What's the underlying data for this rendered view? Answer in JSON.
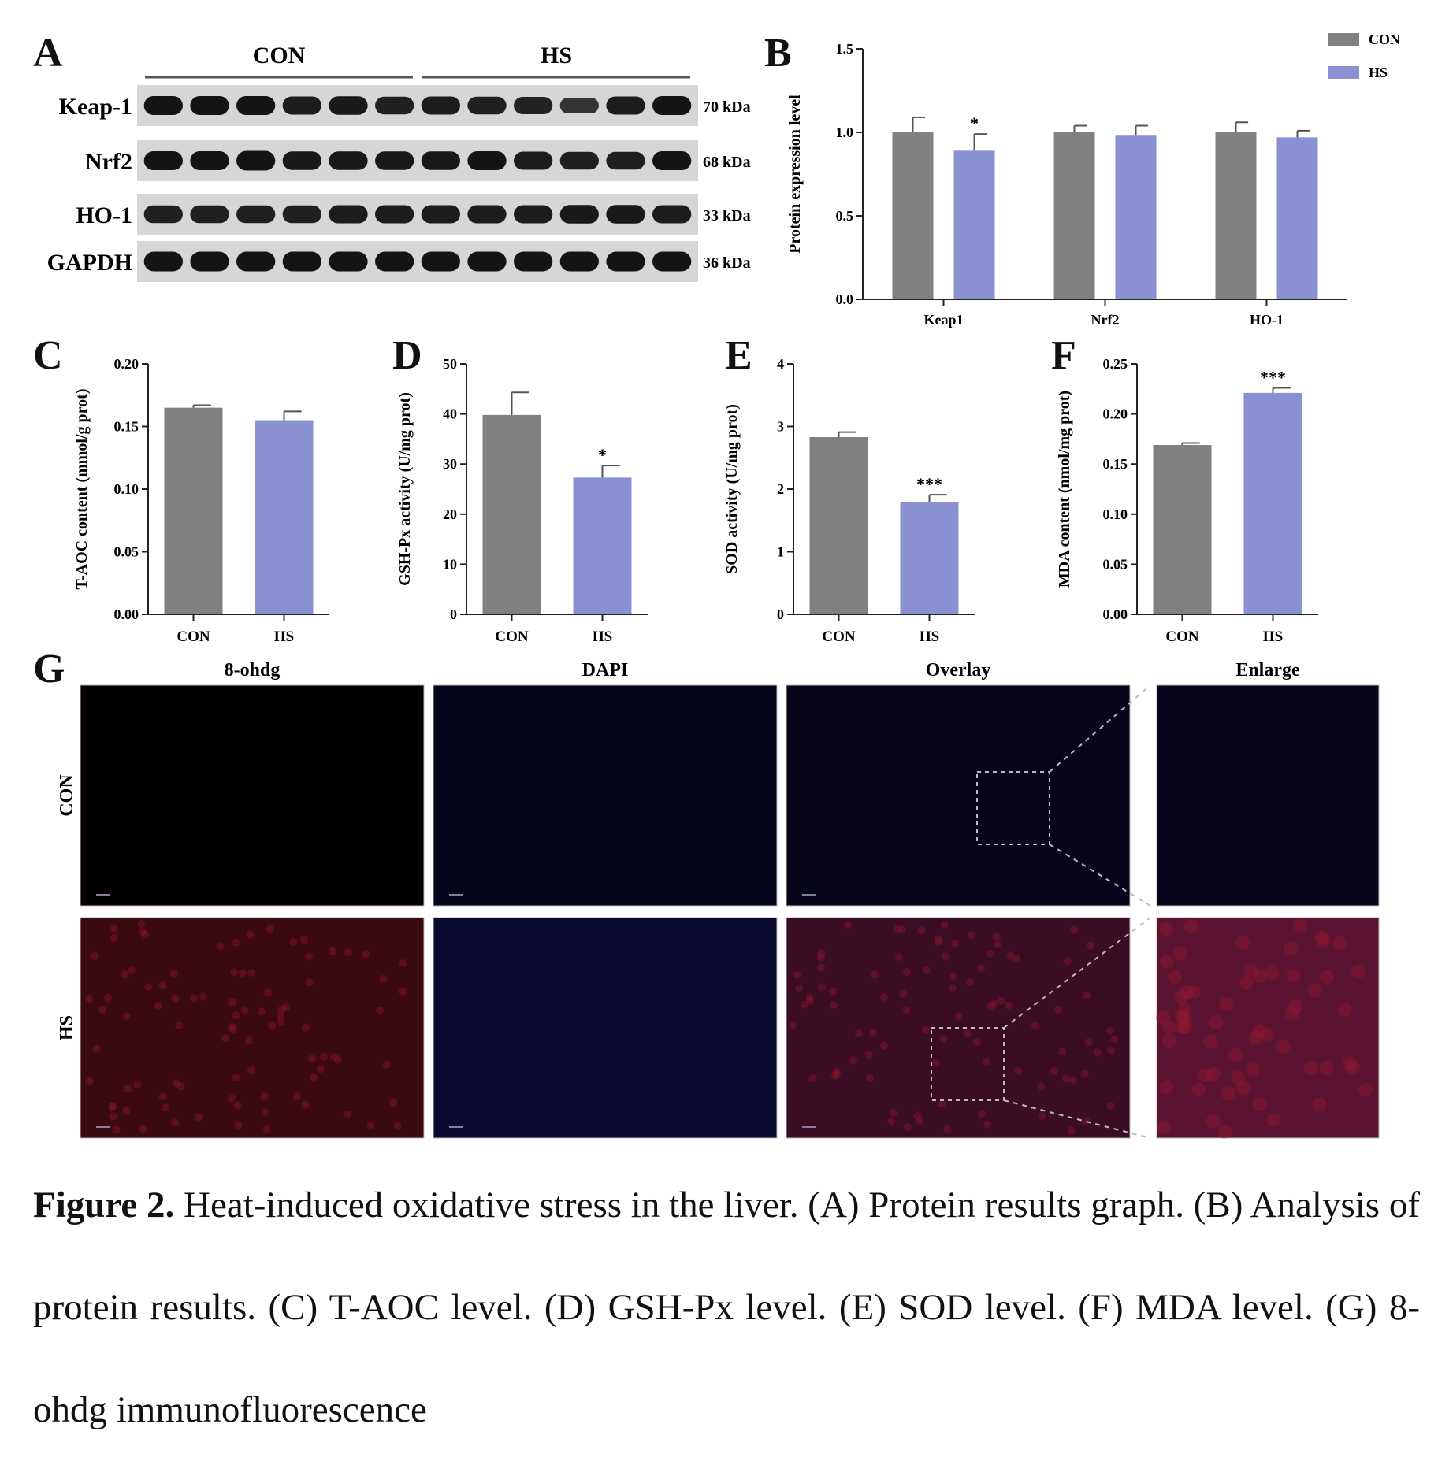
{
  "figure": {
    "panel_labels": [
      "A",
      "B",
      "C",
      "D",
      "E",
      "F",
      "G"
    ],
    "caption_label": "Figure 2.",
    "caption_text": " Heat-induced oxidative stress in the liver. (A) Protein results graph. (B) Analysis of protein results. (C) T-AOC level. (D) GSH-Px level. (E) SOD level. (F) MDA level. (G) 8-ohdg immunofluorescence"
  },
  "western_blot": {
    "groups": [
      "CON",
      "HS"
    ],
    "lanes_per_group": 6,
    "proteins": [
      {
        "name": "Keap-1",
        "size": "70 kDa"
      },
      {
        "name": "Nrf2",
        "size": "68 kDa"
      },
      {
        "name": "HO-1",
        "size": "33 kDa"
      },
      {
        "name": "GAPDH",
        "size": "36 kDa"
      }
    ],
    "colors": {
      "band": "#141414",
      "membrane": "#d6d6d6"
    }
  },
  "colors": {
    "con": "#808080",
    "hs": "#8a91d2",
    "error_bar": "#555555"
  },
  "chart_data": [
    {
      "panel": "B",
      "type": "bar",
      "categories": [
        "Keap1",
        "Nrf2",
        "HO-1"
      ],
      "series": [
        {
          "name": "CON",
          "values": [
            1.0,
            1.0,
            1.0
          ],
          "errors": [
            0.09,
            0.04,
            0.06
          ]
        },
        {
          "name": "HS",
          "values": [
            0.89,
            0.98,
            0.97
          ],
          "errors": [
            0.1,
            0.06,
            0.04
          ]
        }
      ],
      "ylabel": "Protein expression level",
      "ylim": [
        0,
        1.5
      ],
      "yticks": [
        "0.0",
        "0.5",
        "1.0",
        "1.5"
      ],
      "significance": [
        "*",
        "",
        ""
      ],
      "legend": "top-right"
    },
    {
      "panel": "C",
      "type": "bar",
      "categories": [
        "CON",
        "HS"
      ],
      "values": [
        0.165,
        0.155
      ],
      "errors": [
        0.002,
        0.007
      ],
      "ylabel": "T-AOC content (mmol/g prot)",
      "ylim": [
        0,
        0.2
      ],
      "yticks": [
        "0.00",
        "0.05",
        "0.10",
        "0.15",
        "0.20"
      ],
      "significance": [
        "",
        ""
      ]
    },
    {
      "panel": "D",
      "type": "bar",
      "categories": [
        "CON",
        "HS"
      ],
      "values": [
        39.8,
        27.3
      ],
      "errors": [
        4.5,
        2.4
      ],
      "ylabel": "GSH-Px activity (U/mg prot)",
      "ylim": [
        0,
        50
      ],
      "yticks": [
        "0",
        "10",
        "20",
        "30",
        "40",
        "50"
      ],
      "significance": [
        "",
        "*"
      ]
    },
    {
      "panel": "E",
      "type": "bar",
      "categories": [
        "CON",
        "HS"
      ],
      "values": [
        2.83,
        1.79
      ],
      "errors": [
        0.08,
        0.12
      ],
      "ylabel": "SOD activity (U/mg prot)",
      "ylim": [
        0,
        4
      ],
      "yticks": [
        "0",
        "1",
        "2",
        "3",
        "4"
      ],
      "significance": [
        "",
        "***"
      ]
    },
    {
      "panel": "F",
      "type": "bar",
      "categories": [
        "CON",
        "HS"
      ],
      "values": [
        0.169,
        0.221
      ],
      "errors": [
        0.002,
        0.005
      ],
      "ylabel": "MDA content (nmol/mg prot)",
      "ylim": [
        0,
        0.25
      ],
      "yticks": [
        "0.00",
        "0.05",
        "0.10",
        "0.15",
        "0.20",
        "0.25"
      ],
      "significance": [
        "",
        "***"
      ]
    }
  ],
  "immunofluorescence": {
    "columns": [
      "8-ohdg",
      "DAPI",
      "Overlay",
      "Enlarge"
    ],
    "rows": [
      "CON",
      "HS"
    ],
    "colors": {
      "con_8ohdg": "#050000",
      "con_dapi": "#04041a",
      "con_overlay": "#06051a",
      "con_enlarge": "#08061c",
      "hs_8ohdg": "#3a0a10",
      "hs_dapi": "#0a0a30",
      "hs_overlay": "#3a0d22",
      "hs_enlarge": "#5a1432"
    }
  }
}
